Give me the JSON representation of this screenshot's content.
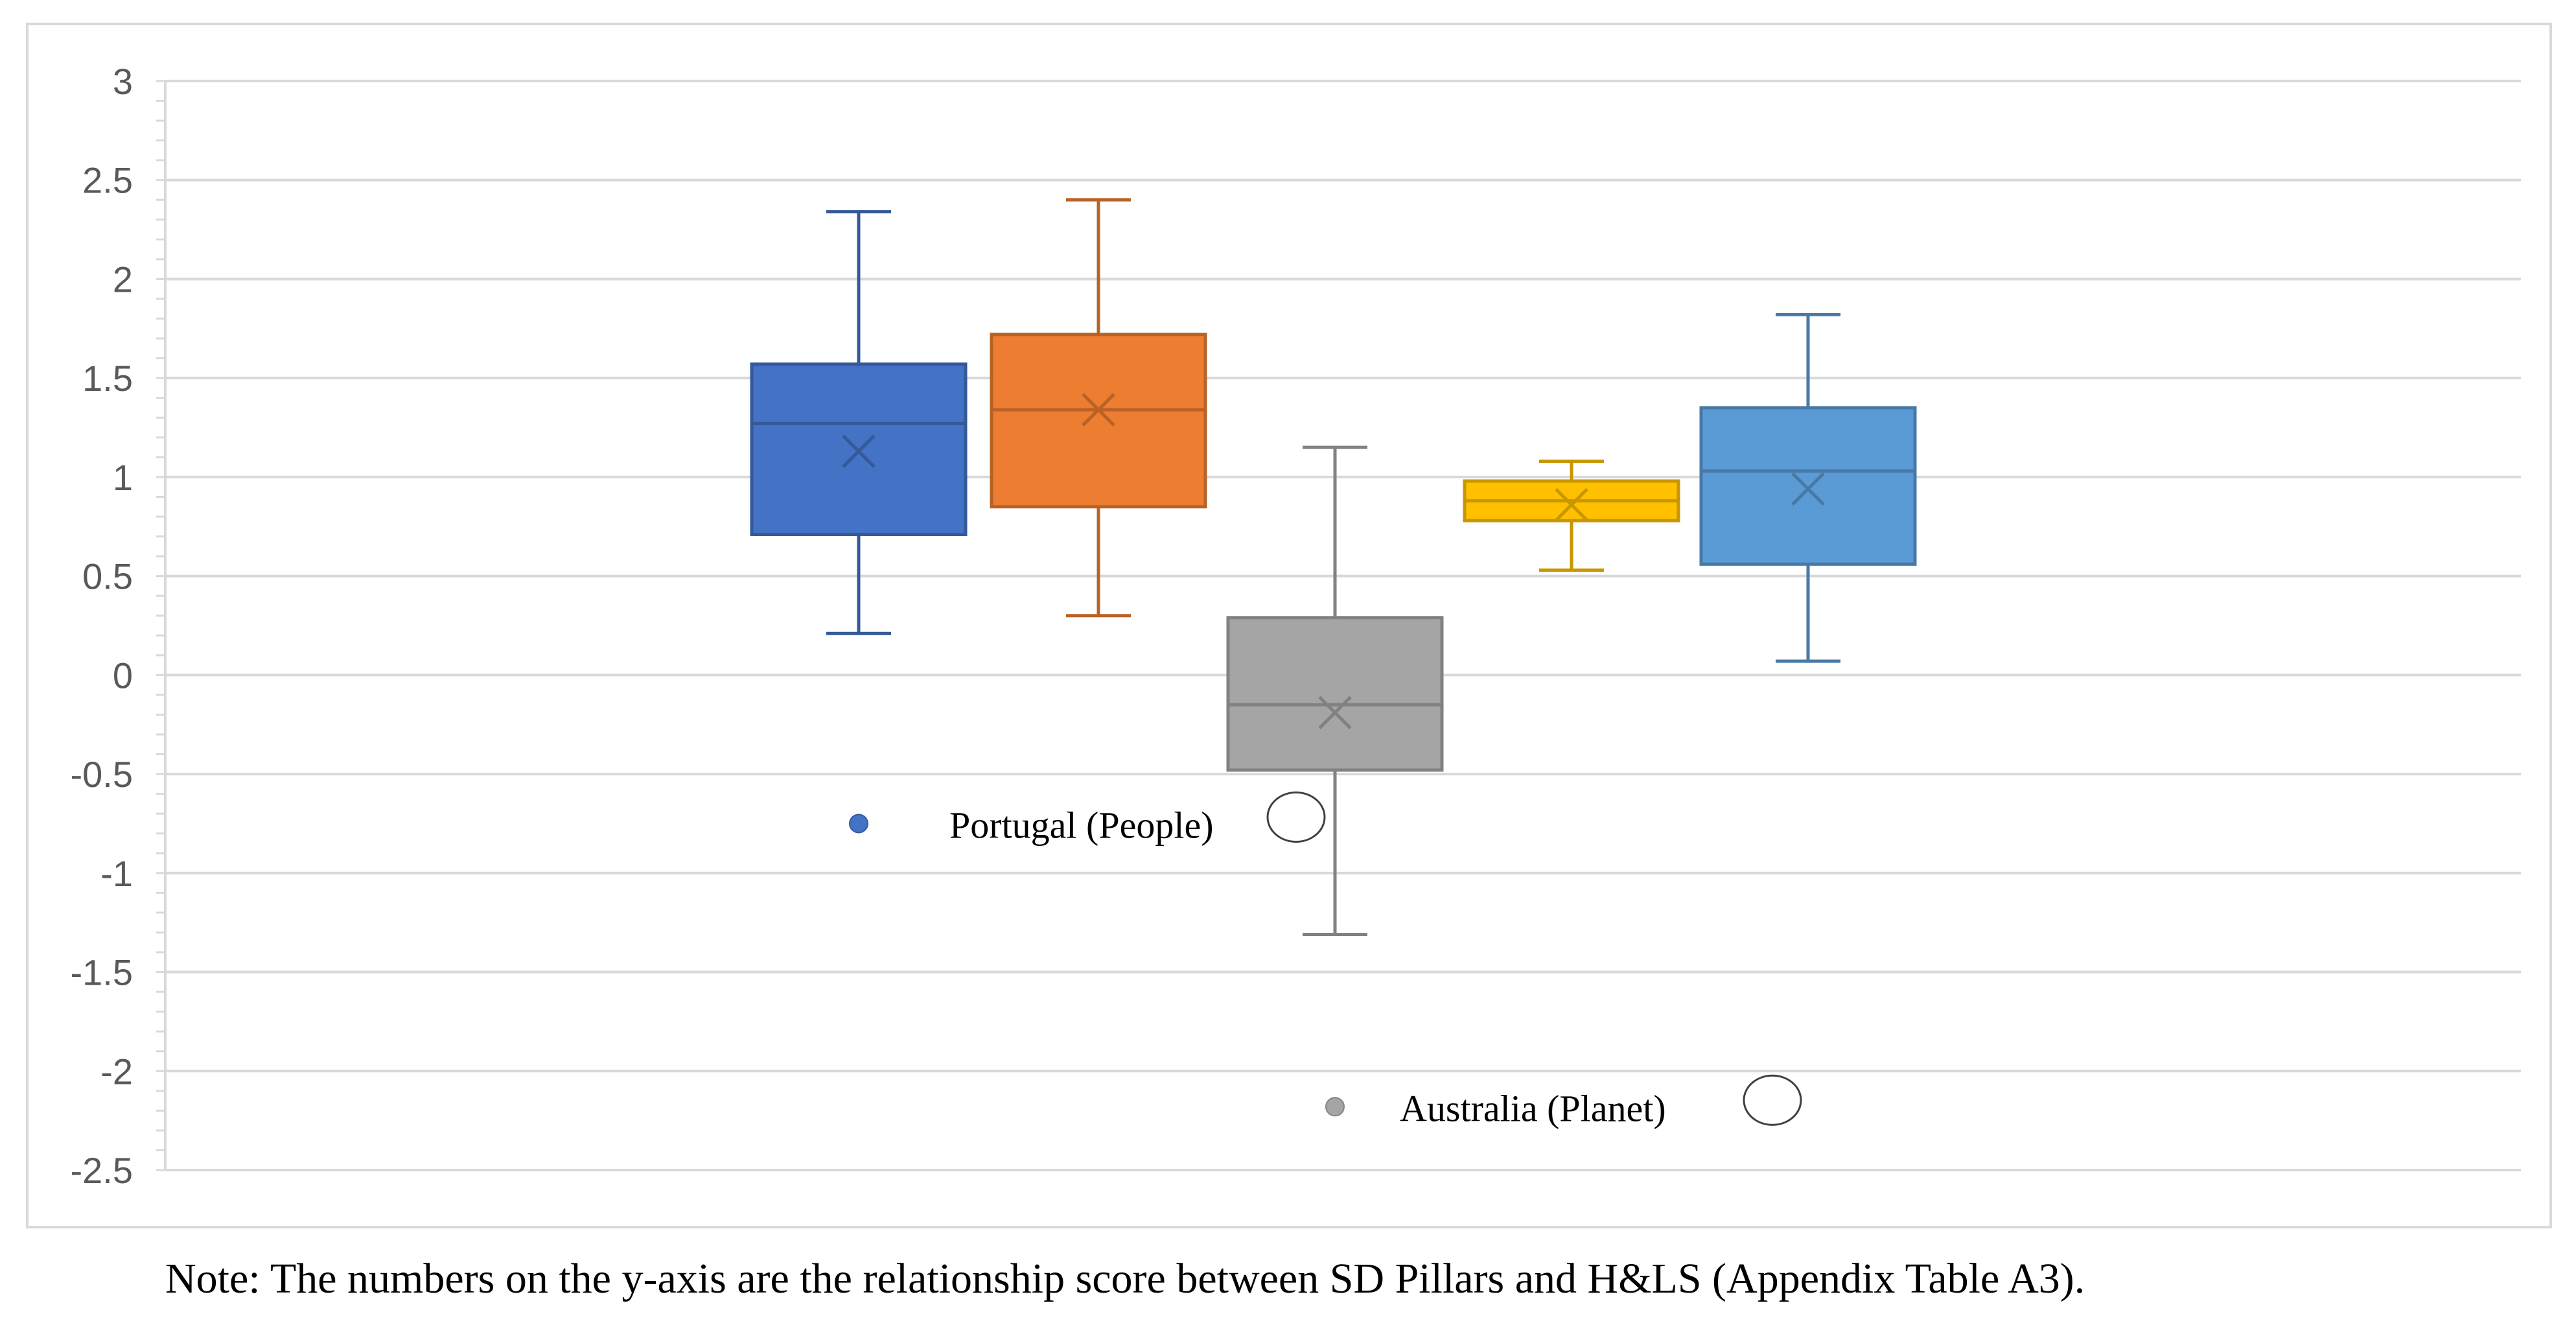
{
  "chart_data": {
    "type": "box",
    "ylim": [
      -2.5,
      3
    ],
    "ytick_labels": [
      "3",
      "2.5",
      "2",
      "1.5",
      "1",
      "0.5",
      "0",
      "-0.5",
      "-1",
      "-1.5",
      "-2",
      "-2.5"
    ],
    "ytick_values": [
      3,
      2.5,
      2,
      1.5,
      1,
      0.5,
      0,
      -0.5,
      -1,
      -1.5,
      -2,
      -2.5
    ],
    "grid": true,
    "boxes": [
      {
        "color": "#4472c4",
        "whisker_low": 0.21,
        "q1": 0.71,
        "median": 1.27,
        "q3": 1.57,
        "whisker_high": 2.34,
        "mean": 1.13
      },
      {
        "color": "#ed7d31",
        "whisker_low": 0.3,
        "q1": 0.85,
        "median": 1.34,
        "q3": 1.72,
        "whisker_high": 2.4,
        "mean": 1.34
      },
      {
        "color": "#a5a5a5",
        "whisker_low": -1.31,
        "q1": -0.48,
        "median": -0.15,
        "q3": 0.29,
        "whisker_high": 1.15,
        "mean": -0.19,
        "outlier": -2.18
      },
      {
        "color": "#ffc000",
        "whisker_low": 0.53,
        "q1": 0.78,
        "median": 0.88,
        "q3": 0.98,
        "whisker_high": 1.08,
        "mean": 0.86
      },
      {
        "color": "#5b9bd5",
        "whisker_low": 0.07,
        "q1": 0.56,
        "median": 1.03,
        "q3": 1.35,
        "whisker_high": 1.82,
        "mean": 0.94
      }
    ],
    "annotations": [
      {
        "text": "Portugal (People)",
        "point_box": 0,
        "point_y": -0.75,
        "point_color": "#4472c4"
      },
      {
        "text": "Australia (Planet)",
        "point_box": 2,
        "point_y": -2.18,
        "point_color": "#a5a5a5"
      }
    ]
  },
  "note": "Note: The numbers on the y-axis are the relationship score between SD Pillars and H&LS (Appendix Table A3)."
}
